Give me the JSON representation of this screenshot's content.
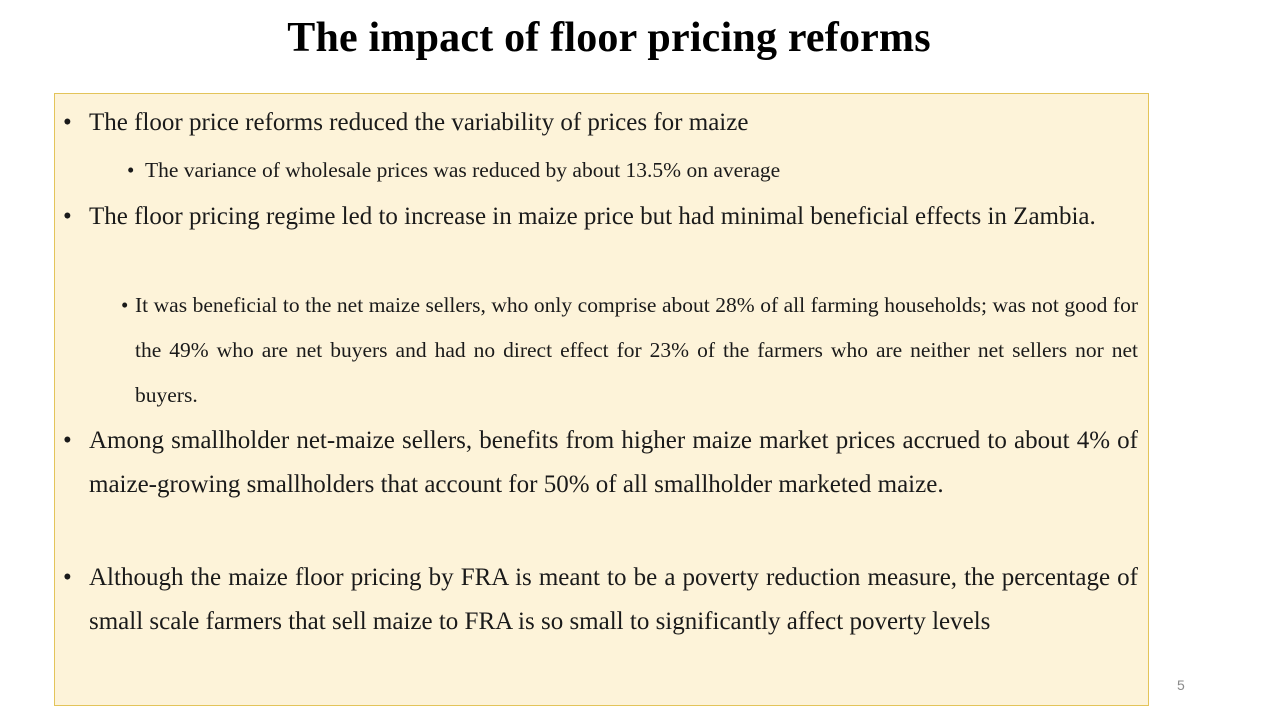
{
  "slide": {
    "title": "The impact of floor pricing reforms",
    "page_number": "5"
  },
  "bullets": [
    {
      "level": 1,
      "text": "The floor price reforms reduced the variability of prices for maize"
    },
    {
      "level": 2,
      "text": "The variance of wholesale prices was reduced by about 13.5% on average"
    },
    {
      "level": 1,
      "text": "The floor pricing regime led to increase in maize price but had minimal beneficial effects in Zambia."
    },
    {
      "level": 2,
      "text": "It was beneficial to the net maize sellers, who only comprise about 28% of all farming households; was not good for the 49% who are net buyers and had no direct effect for 23% of the farmers who are neither net sellers nor net buyers."
    },
    {
      "level": 1,
      "text": "Among smallholder net-maize sellers, benefits from higher maize market prices accrued to about  4% of maize-growing smallholders that account for 50% of all smallholder marketed maize."
    },
    {
      "level": 1,
      "text": "Although the maize floor pricing by FRA is meant to be a poverty reduction measure, the percentage of small scale farmers that sell maize to FRA is so small to significantly affect poverty levels"
    }
  ],
  "colors": {
    "box_background": "#fdf3d9",
    "box_border": "#e3c45a",
    "text": "#1a1a1a"
  }
}
